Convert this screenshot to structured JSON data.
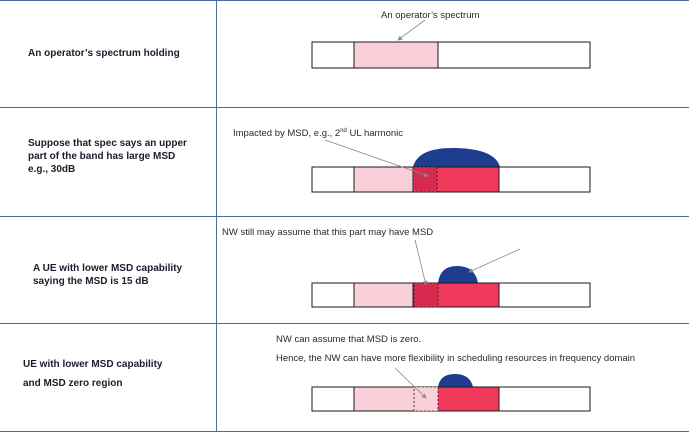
{
  "rows": [
    {
      "label_lines": [
        "An operator’s spectrum holding"
      ],
      "annotations": [
        "An operator’s spectrum"
      ]
    },
    {
      "label_lines": [
        "Suppose that spec says an upper",
        "part of the band has large MSD",
        "e.g., 30dB"
      ],
      "annotations": [
        "Impacted by MSD, e.g., 2nd UL harmonic"
      ]
    },
    {
      "label_lines": [
        "A UE with lower MSD capability",
        "saying the MSD is 15 dB"
      ],
      "annotations": [
        "NW still may assume that this part may have MSD"
      ]
    },
    {
      "label_lines": [
        "UE with lower MSD capability",
        "and MSD zero region"
      ],
      "annotations": [
        "NW can assume that MSD is zero.",
        "Hence, the NW can have more flexibility in scheduling resources in frequency domain"
      ]
    }
  ],
  "colors": {
    "grid_line": "#4a6d9c",
    "light_pink": "#f9cfd9",
    "red": "#f0385a",
    "dark_red": "#d62a4e",
    "navy": "#1f3d8f"
  }
}
